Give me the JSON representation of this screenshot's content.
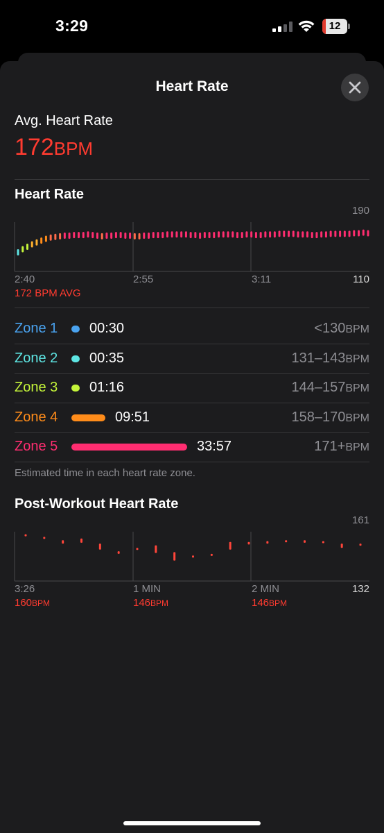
{
  "status_bar": {
    "time": "3:29",
    "battery": "12"
  },
  "sheet": {
    "title": "Heart Rate"
  },
  "summary": {
    "label": "Avg. Heart Rate",
    "value": "172",
    "unit": "BPM"
  },
  "heart_chart": {
    "title": "Heart Rate",
    "max_label": "190",
    "min_label": "110",
    "x_labels": [
      "2:40",
      "2:55",
      "3:11"
    ],
    "avg_caption": "172 BPM AVG"
  },
  "zones": [
    {
      "name": "Zone 1",
      "time": "00:30",
      "range": "<130",
      "unit": "BPM",
      "color": "#4aa3f0",
      "fraction": 0.0111
    },
    {
      "name": "Zone 2",
      "time": "00:35",
      "range": "131–143",
      "unit": "BPM",
      "color": "#5ee6e4",
      "fraction": 0.0129
    },
    {
      "name": "Zone 3",
      "time": "01:16",
      "range": "144–157",
      "unit": "BPM",
      "color": "#c5f53a",
      "fraction": 0.0281
    },
    {
      "name": "Zone 4",
      "time": "09:51",
      "range": "158–170",
      "unit": "BPM",
      "color": "#ff8c1a",
      "fraction": 0.2189
    },
    {
      "name": "Zone 5",
      "time": "33:57",
      "range": "171+",
      "unit": "BPM",
      "color": "#ff2d70",
      "fraction": 0.7542
    }
  ],
  "zone_caption": "Estimated time in each heart rate zone.",
  "post_workout": {
    "title": "Post-Workout Heart Rate",
    "max_label": "161",
    "min_label": "132",
    "x_labels": [
      "3:26",
      "1 MIN",
      "2 MIN"
    ],
    "values": [
      {
        "value": "160",
        "unit": "BPM"
      },
      {
        "value": "146",
        "unit": "BPM"
      },
      {
        "value": "146",
        "unit": "BPM"
      }
    ]
  },
  "chart_data": [
    {
      "type": "line",
      "title": "Heart Rate",
      "x_tick_labels": [
        "2:40",
        "2:55",
        "3:11"
      ],
      "ylim": [
        110,
        190
      ],
      "y_tick_labels": [
        "110",
        "190"
      ],
      "annotation": "172 BPM AVG",
      "grid": true,
      "series": [
        {
          "values": [
            141,
            146,
            150,
            154,
            157,
            160,
            163,
            165,
            166,
            167,
            168,
            168,
            169,
            169,
            169,
            170,
            169,
            168,
            167,
            168,
            168,
            169,
            169,
            168,
            168,
            167,
            167,
            168,
            168,
            169,
            169,
            169,
            170,
            170,
            170,
            170,
            170,
            169,
            169,
            168,
            169,
            169,
            169,
            170,
            170,
            170,
            170,
            169,
            169,
            170,
            170,
            169,
            169,
            170,
            170,
            170,
            171,
            171,
            171,
            171,
            170,
            170,
            170,
            169,
            169,
            170,
            170,
            171,
            171,
            171,
            171,
            171,
            172,
            172,
            173,
            172
          ]
        }
      ]
    },
    {
      "type": "scatter",
      "title": "Post-Workout Heart Rate",
      "x_tick_labels": [
        "3:26",
        "1 MIN",
        "2 MIN"
      ],
      "ylim": [
        132,
        161
      ],
      "y_tick_labels": [
        "132",
        "161"
      ],
      "grid": true,
      "series": [
        {
          "values": [
            [
              159.5,
              159.5
            ],
            [
              158,
              158
            ],
            [
              154,
              156
            ],
            [
              154.5,
              157
            ],
            [
              150.5,
              154
            ],
            [
              148,
              149.5
            ],
            [
              151,
              151.5
            ],
            [
              148.5,
              153
            ],
            [
              144,
              149
            ],
            [
              146.5,
              147
            ],
            [
              147,
              148
            ],
            [
              150.5,
              155
            ],
            [
              153.5,
              155
            ],
            [
              154,
              155.5
            ],
            [
              155,
              156
            ],
            [
              154.5,
              156
            ],
            [
              155,
              155.5
            ],
            [
              151.5,
              154
            ],
            [
              153.5,
              154
            ]
          ]
        }
      ]
    }
  ]
}
